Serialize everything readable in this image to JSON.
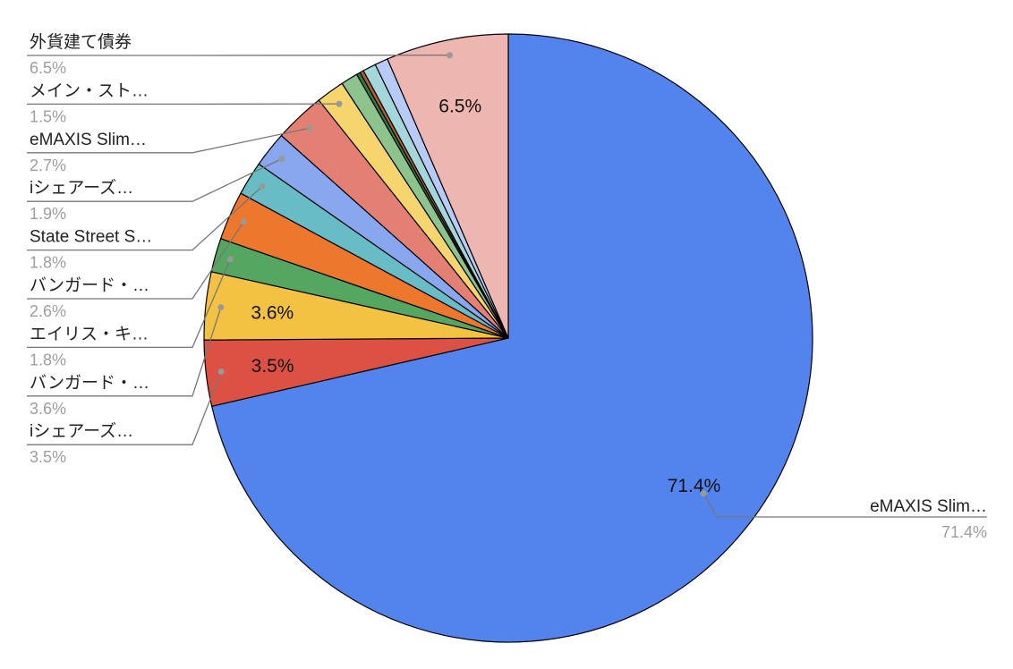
{
  "chart_data": {
    "type": "pie",
    "categories": [
      "eMAXIS Slim…",
      "iシェアーズ…",
      "バンガード・…",
      "エイリス・キ…",
      "バンガード・…",
      "State Street S…",
      "iシェアーズ…",
      "eMAXIS Slim…",
      "メイン・スト…",
      null,
      null,
      null,
      null,
      null,
      "外貨建て債券"
    ],
    "values": [
      71.4,
      3.5,
      3.6,
      1.8,
      2.6,
      1.8,
      1.9,
      2.7,
      1.5,
      0.9,
      0.2,
      0.2,
      0.7,
      0.7,
      6.5
    ],
    "value_labels": [
      "71.4%",
      "3.5%",
      "3.6%",
      "1.8%",
      "2.6%",
      "1.8%",
      "1.9%",
      "2.7%",
      "1.5%",
      null,
      null,
      null,
      null,
      null,
      "6.5%"
    ],
    "colors": [
      "#5383ec",
      "#dd5144",
      "#f3c242",
      "#55a660",
      "#ee772e",
      "#68bcc6",
      "#88a7ef",
      "#e37f73",
      "#f6d46e",
      "#8dc38d",
      "#2f7a3e",
      "#b35b2a",
      "#a4d7dc",
      "#b7cbf6",
      "#eeb6b0"
    ]
  }
}
